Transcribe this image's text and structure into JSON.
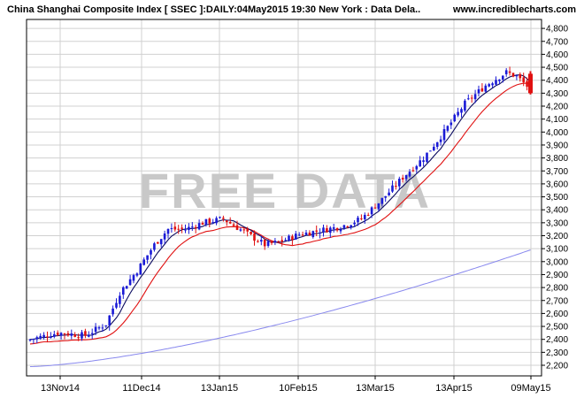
{
  "header": {
    "title": "China Shanghai Composite Index [ SSEC ]:DAILY:04May2015 19:30 New York : Data Dela..",
    "site": "www.incrediblecharts.com"
  },
  "watermark": "FREE DATA",
  "colors": {
    "background": "#ffffff",
    "plot_border": "#000000",
    "grid": "#d0d0d0",
    "up_candle": "#1a1ad6",
    "down_candle": "#e01010",
    "ma_short": "#0a0a60",
    "ma_mid": "#e01010",
    "ma_long": "#8888ee",
    "watermark": "#c8c8c8"
  },
  "chart_data": {
    "type": "candlestick",
    "title": "China Shanghai Composite Index [ SSEC ]:DAILY:04May2015 19:30 New York : Data Dela..",
    "x_tick_labels": [
      "13Nov14",
      "11Dec14",
      "13Jan15",
      "10Feb15",
      "13Mar15",
      "13Apr15",
      "09May15"
    ],
    "y_ticks": [
      2200,
      2300,
      2400,
      2500,
      2600,
      2700,
      2800,
      2900,
      3000,
      3100,
      3200,
      3300,
      3400,
      3500,
      3600,
      3700,
      3800,
      3900,
      4000,
      4100,
      4200,
      4300,
      4400,
      4500,
      4600,
      4700,
      4800
    ],
    "y_tick_labels": [
      "2,200",
      "2,300",
      "2,400",
      "2,500",
      "2,600",
      "2,700",
      "2,800",
      "2,900",
      "3,000",
      "3,100",
      "3,200",
      "3,300",
      "3,400",
      "3,500",
      "3,600",
      "3,700",
      "3,800",
      "3,900",
      "4,000",
      "4,100",
      "4,200",
      "4,300",
      "4,400",
      "4,500",
      "4,600",
      "4,700",
      "4,800"
    ],
    "ylim": [
      2150,
      4880
    ],
    "grid": true,
    "y_axis_side": "right",
    "anchors": [
      [
        0,
        2400
      ],
      [
        8,
        2450
      ],
      [
        16,
        2430
      ],
      [
        22,
        2520
      ],
      [
        26,
        2760
      ],
      [
        31,
        2930
      ],
      [
        36,
        3130
      ],
      [
        40,
        3250
      ],
      [
        45,
        3250
      ],
      [
        50,
        3300
      ],
      [
        56,
        3330
      ],
      [
        62,
        3230
      ],
      [
        68,
        3130
      ],
      [
        72,
        3150
      ],
      [
        78,
        3210
      ],
      [
        84,
        3240
      ],
      [
        90,
        3270
      ],
      [
        96,
        3330
      ],
      [
        102,
        3480
      ],
      [
        108,
        3650
      ],
      [
        114,
        3800
      ],
      [
        120,
        4000
      ],
      [
        126,
        4220
      ],
      [
        132,
        4360
      ],
      [
        138,
        4460
      ],
      [
        141,
        4430
      ],
      [
        145,
        4330
      ]
    ],
    "last_candle": {
      "open": 4450,
      "close": 4300,
      "high": 4470,
      "low": 4290
    },
    "moving_averages": [
      {
        "name": "short",
        "color": "#0a0a60"
      },
      {
        "name": "mid",
        "color": "#e01010"
      },
      {
        "name": "long",
        "color": "#8888ee"
      }
    ]
  }
}
